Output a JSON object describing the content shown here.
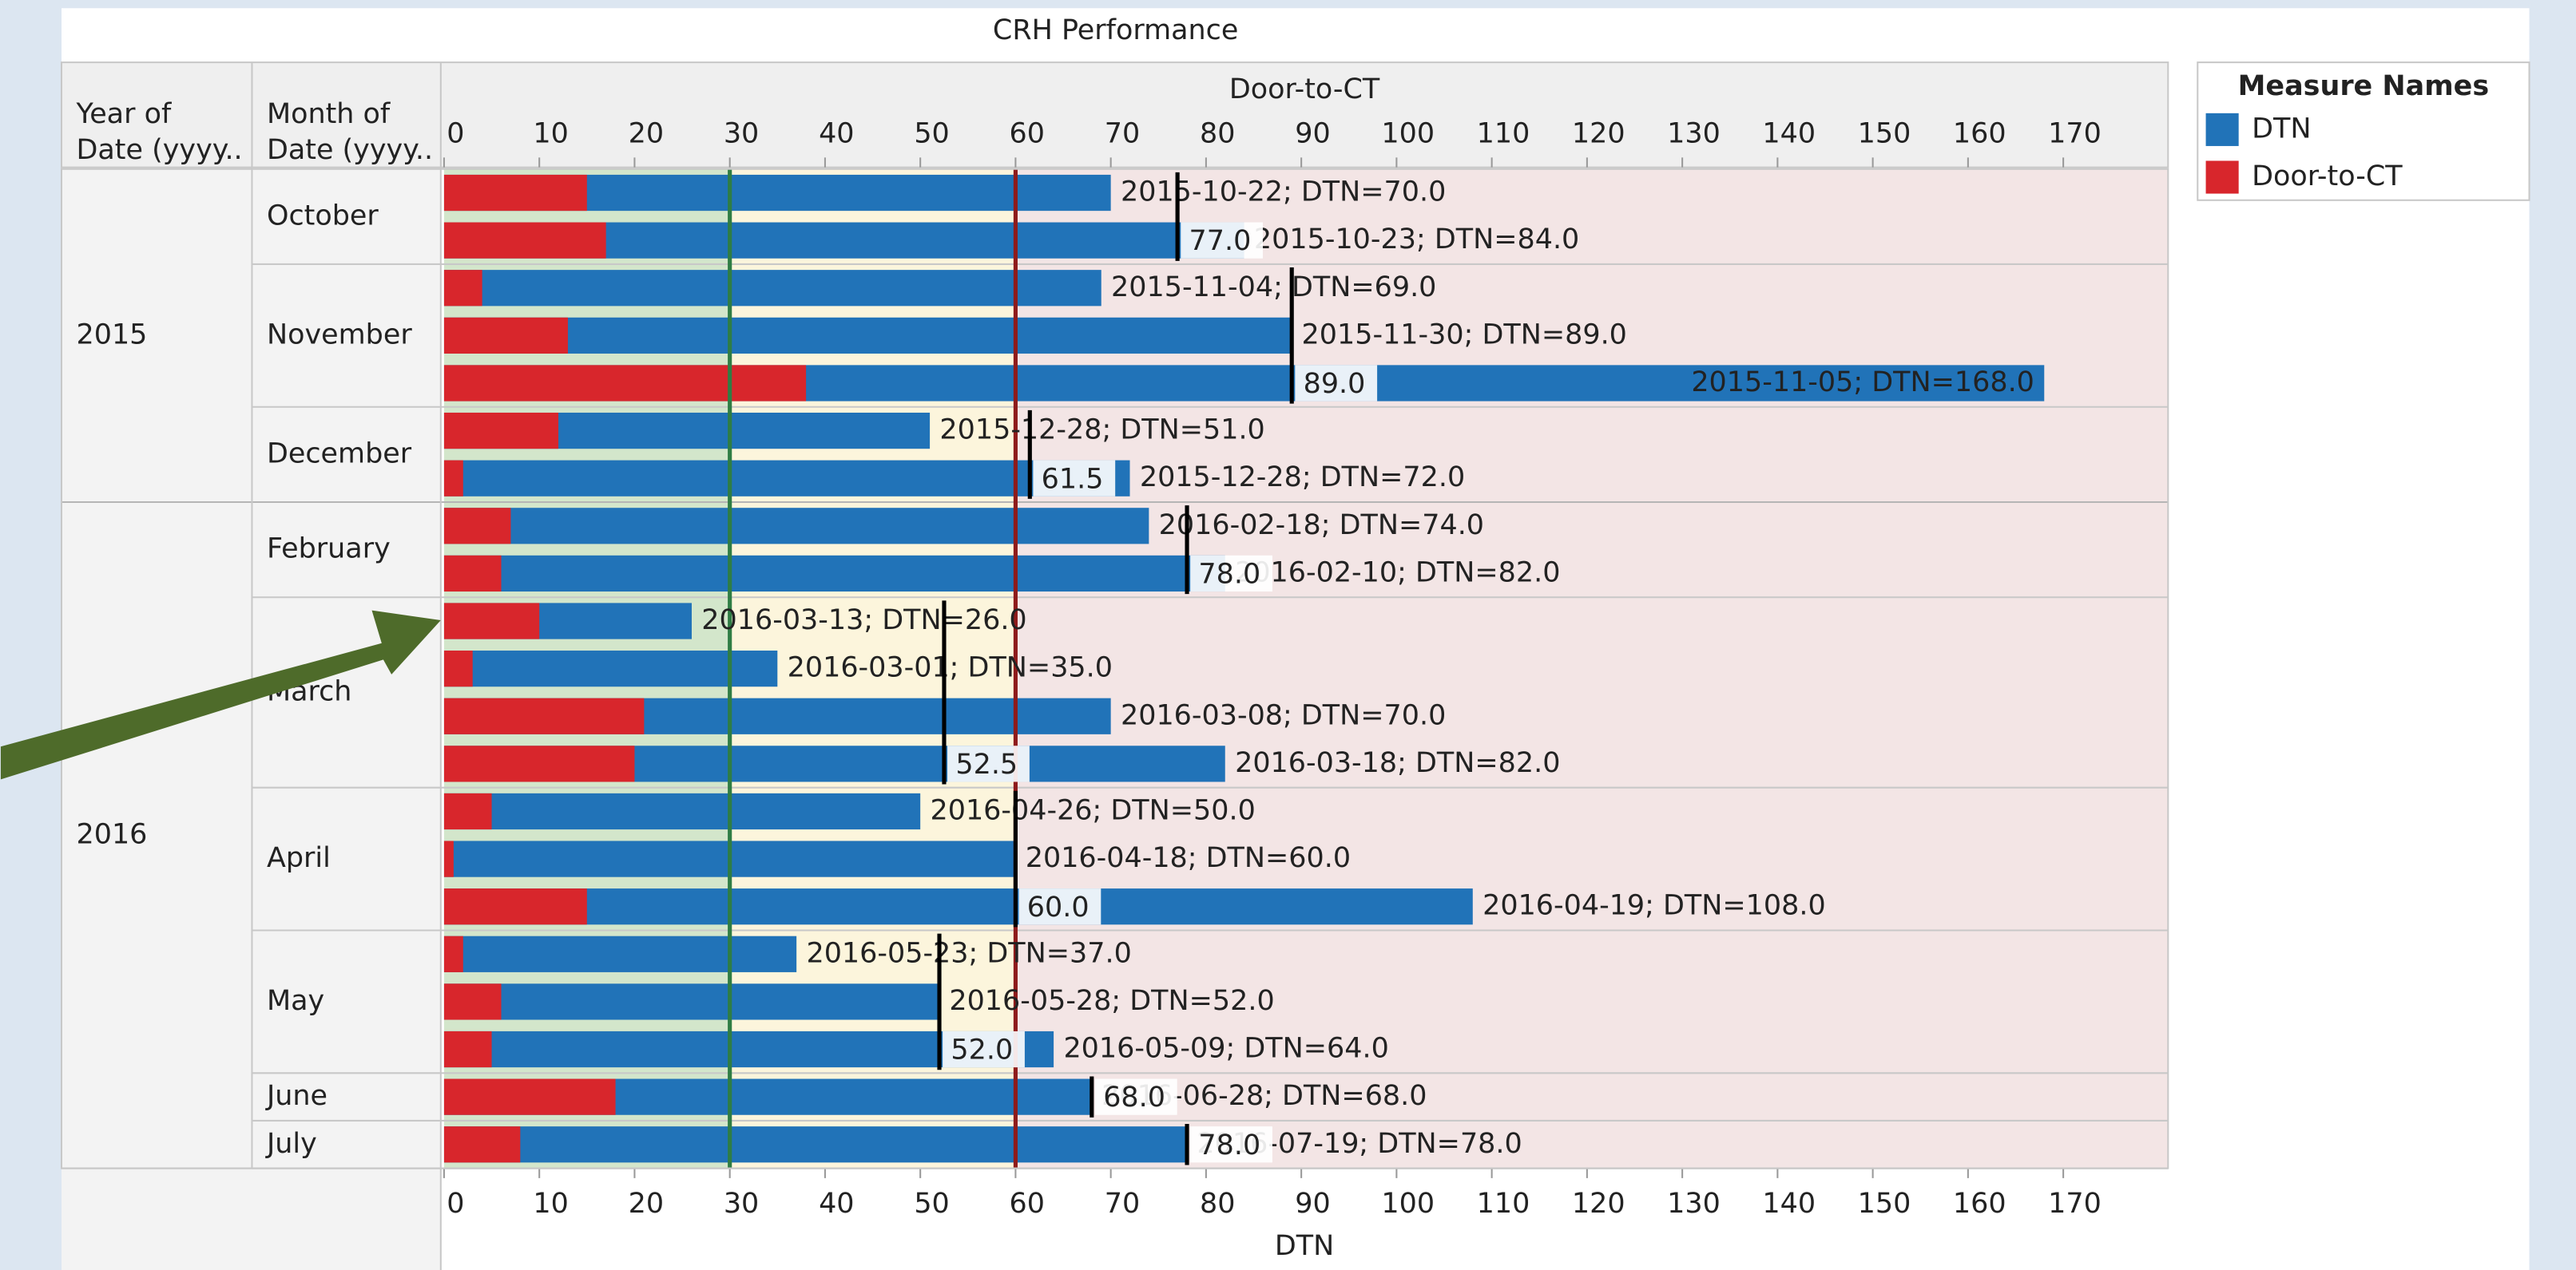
{
  "chart_data": {
    "type": "bar",
    "title": "CRH Performance",
    "x_label": "DTN",
    "x2_label": "Door-to-CT",
    "row_headers": [
      [
        "Year of",
        "Date (yyyy.."
      ],
      [
        "Month of",
        "Date (yyyy.."
      ]
    ],
    "legend_title": "Measure Names",
    "legend": [
      {
        "name": "DTN",
        "color": "#2173b8"
      },
      {
        "name": "Door-to-CT",
        "color": "#d8262c"
      }
    ],
    "xlim": [
      0,
      181
    ],
    "xticks": [
      0,
      10,
      20,
      30,
      40,
      50,
      60,
      70,
      80,
      90,
      100,
      110,
      120,
      130,
      140,
      150,
      160,
      170
    ],
    "bands": [
      {
        "start": 0,
        "end": 30,
        "color": "#d3e6cb"
      },
      {
        "start": 30,
        "end": 60,
        "color": "#fcf5dc"
      },
      {
        "start": 60,
        "end": 181,
        "color": "#f3e5e5"
      }
    ],
    "reference_lines": [
      {
        "value": 30,
        "color": "#2f7d44"
      },
      {
        "value": 60,
        "color": "#8e1b1b"
      }
    ],
    "years": [
      {
        "label": "2015",
        "months": [
          {
            "label": "October",
            "median": 77,
            "median_label": "77.0",
            "dtn": [
              70,
              84
            ],
            "ct": [
              15,
              17
            ],
            "value_labels": [
              "2015-10-22; DTN=70.0",
              "2015-10-23; DTN=84.0"
            ]
          },
          {
            "label": "November",
            "median": 89,
            "median_label": "89.0",
            "dtn": [
              69,
              89,
              168
            ],
            "ct": [
              4,
              13,
              38
            ],
            "value_labels": [
              "2015-11-04; DTN=69.0",
              "2015-11-30; DTN=89.0",
              "2015-11-05; DTN=168.0"
            ]
          },
          {
            "label": "December",
            "median": 61.5,
            "median_label": "61.5",
            "dtn": [
              51,
              72
            ],
            "ct": [
              12,
              2
            ],
            "value_labels": [
              "2015-12-28; DTN=51.0",
              "2015-12-28; DTN=72.0"
            ]
          }
        ]
      },
      {
        "label": "2016",
        "months": [
          {
            "label": "February",
            "median": 78,
            "median_label": "78.0",
            "dtn": [
              74,
              82
            ],
            "ct": [
              7,
              6
            ],
            "value_labels": [
              "2016-02-18; DTN=74.0",
              "2016-02-10; DTN=82.0"
            ]
          },
          {
            "label": "March",
            "median": 52.5,
            "median_label": "52.5",
            "dtn": [
              26,
              35,
              70,
              82
            ],
            "ct": [
              10,
              3,
              21,
              20
            ],
            "value_labels": [
              "2016-03-13; DTN=26.0",
              "2016-03-01; DTN=35.0",
              "2016-03-08; DTN=70.0",
              "2016-03-18; DTN=82.0"
            ]
          },
          {
            "label": "April",
            "median": 60,
            "median_label": "60.0",
            "dtn": [
              50,
              60,
              108
            ],
            "ct": [
              5,
              1,
              15
            ],
            "value_labels": [
              "2016-04-26; DTN=50.0",
              "2016-04-18; DTN=60.0",
              "2016-04-19; DTN=108.0"
            ]
          },
          {
            "label": "May",
            "median": 52,
            "median_label": "52.0",
            "dtn": [
              37,
              52,
              64
            ],
            "ct": [
              2,
              6,
              5
            ],
            "value_labels": [
              "2016-05-23; DTN=37.0",
              "2016-05-28; DTN=52.0",
              "2016-05-09; DTN=64.0"
            ]
          },
          {
            "label": "June",
            "median": 68,
            "median_label": "68.0",
            "dtn": [
              68
            ],
            "ct": [
              18
            ],
            "value_labels": [
              "2016-06-28; DTN=68.0"
            ]
          },
          {
            "label": "July",
            "median": 78,
            "median_label": "78.0",
            "dtn": [
              78
            ],
            "ct": [
              8
            ],
            "value_labels": [
              "2016-07-19; DTN=78.0"
            ]
          }
        ]
      }
    ]
  }
}
